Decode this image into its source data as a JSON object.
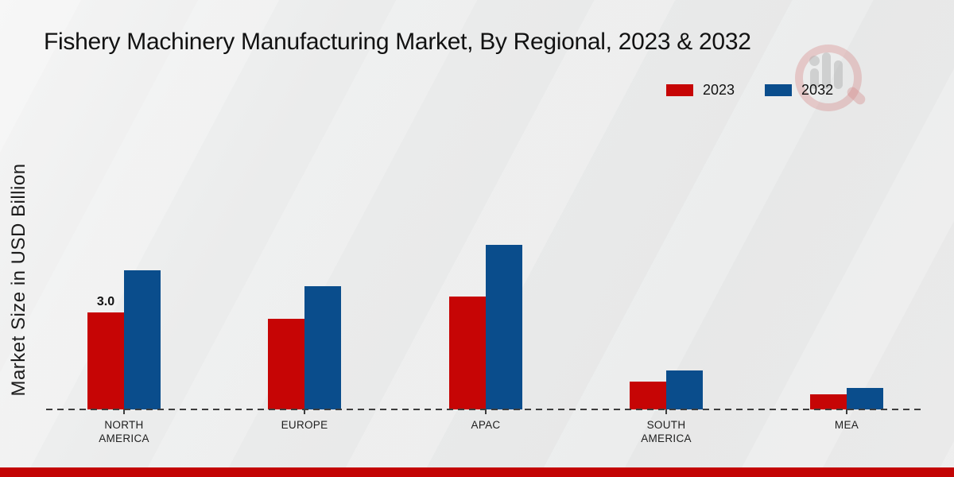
{
  "title": "Fishery Machinery Manufacturing Market, By Regional, 2023 & 2032",
  "ylabel": "Market Size in USD Billion",
  "legend": [
    {
      "label": "2023",
      "color": "#C60505"
    },
    {
      "label": "2032",
      "color": "#0A4D8C"
    }
  ],
  "accent_bar_color": "#C30404",
  "watermark": {
    "name": "market-research-future-logo"
  },
  "chart_data": {
    "type": "bar",
    "title": "Fishery Machinery Manufacturing Market, By Regional, 2023 & 2032",
    "xlabel": "",
    "ylabel": "Market Size in USD Billion",
    "categories": [
      "NORTH AMERICA",
      "EUROPE",
      "APAC",
      "SOUTH AMERICA",
      "MEA"
    ],
    "series": [
      {
        "name": "2023",
        "color": "#C60505",
        "values": [
          3.0,
          2.8,
          3.5,
          0.85,
          0.47
        ]
      },
      {
        "name": "2032",
        "color": "#0A4D8C",
        "values": [
          4.3,
          3.8,
          5.1,
          1.2,
          0.66
        ]
      }
    ],
    "unit": "USD Billion",
    "annotations": [
      {
        "category_index": 0,
        "series": "2023",
        "text": "3.0"
      }
    ],
    "axis": {
      "y_ticks_visible": false,
      "baseline_style": "dashed"
    },
    "grid": false,
    "legend_position": "top-right"
  }
}
